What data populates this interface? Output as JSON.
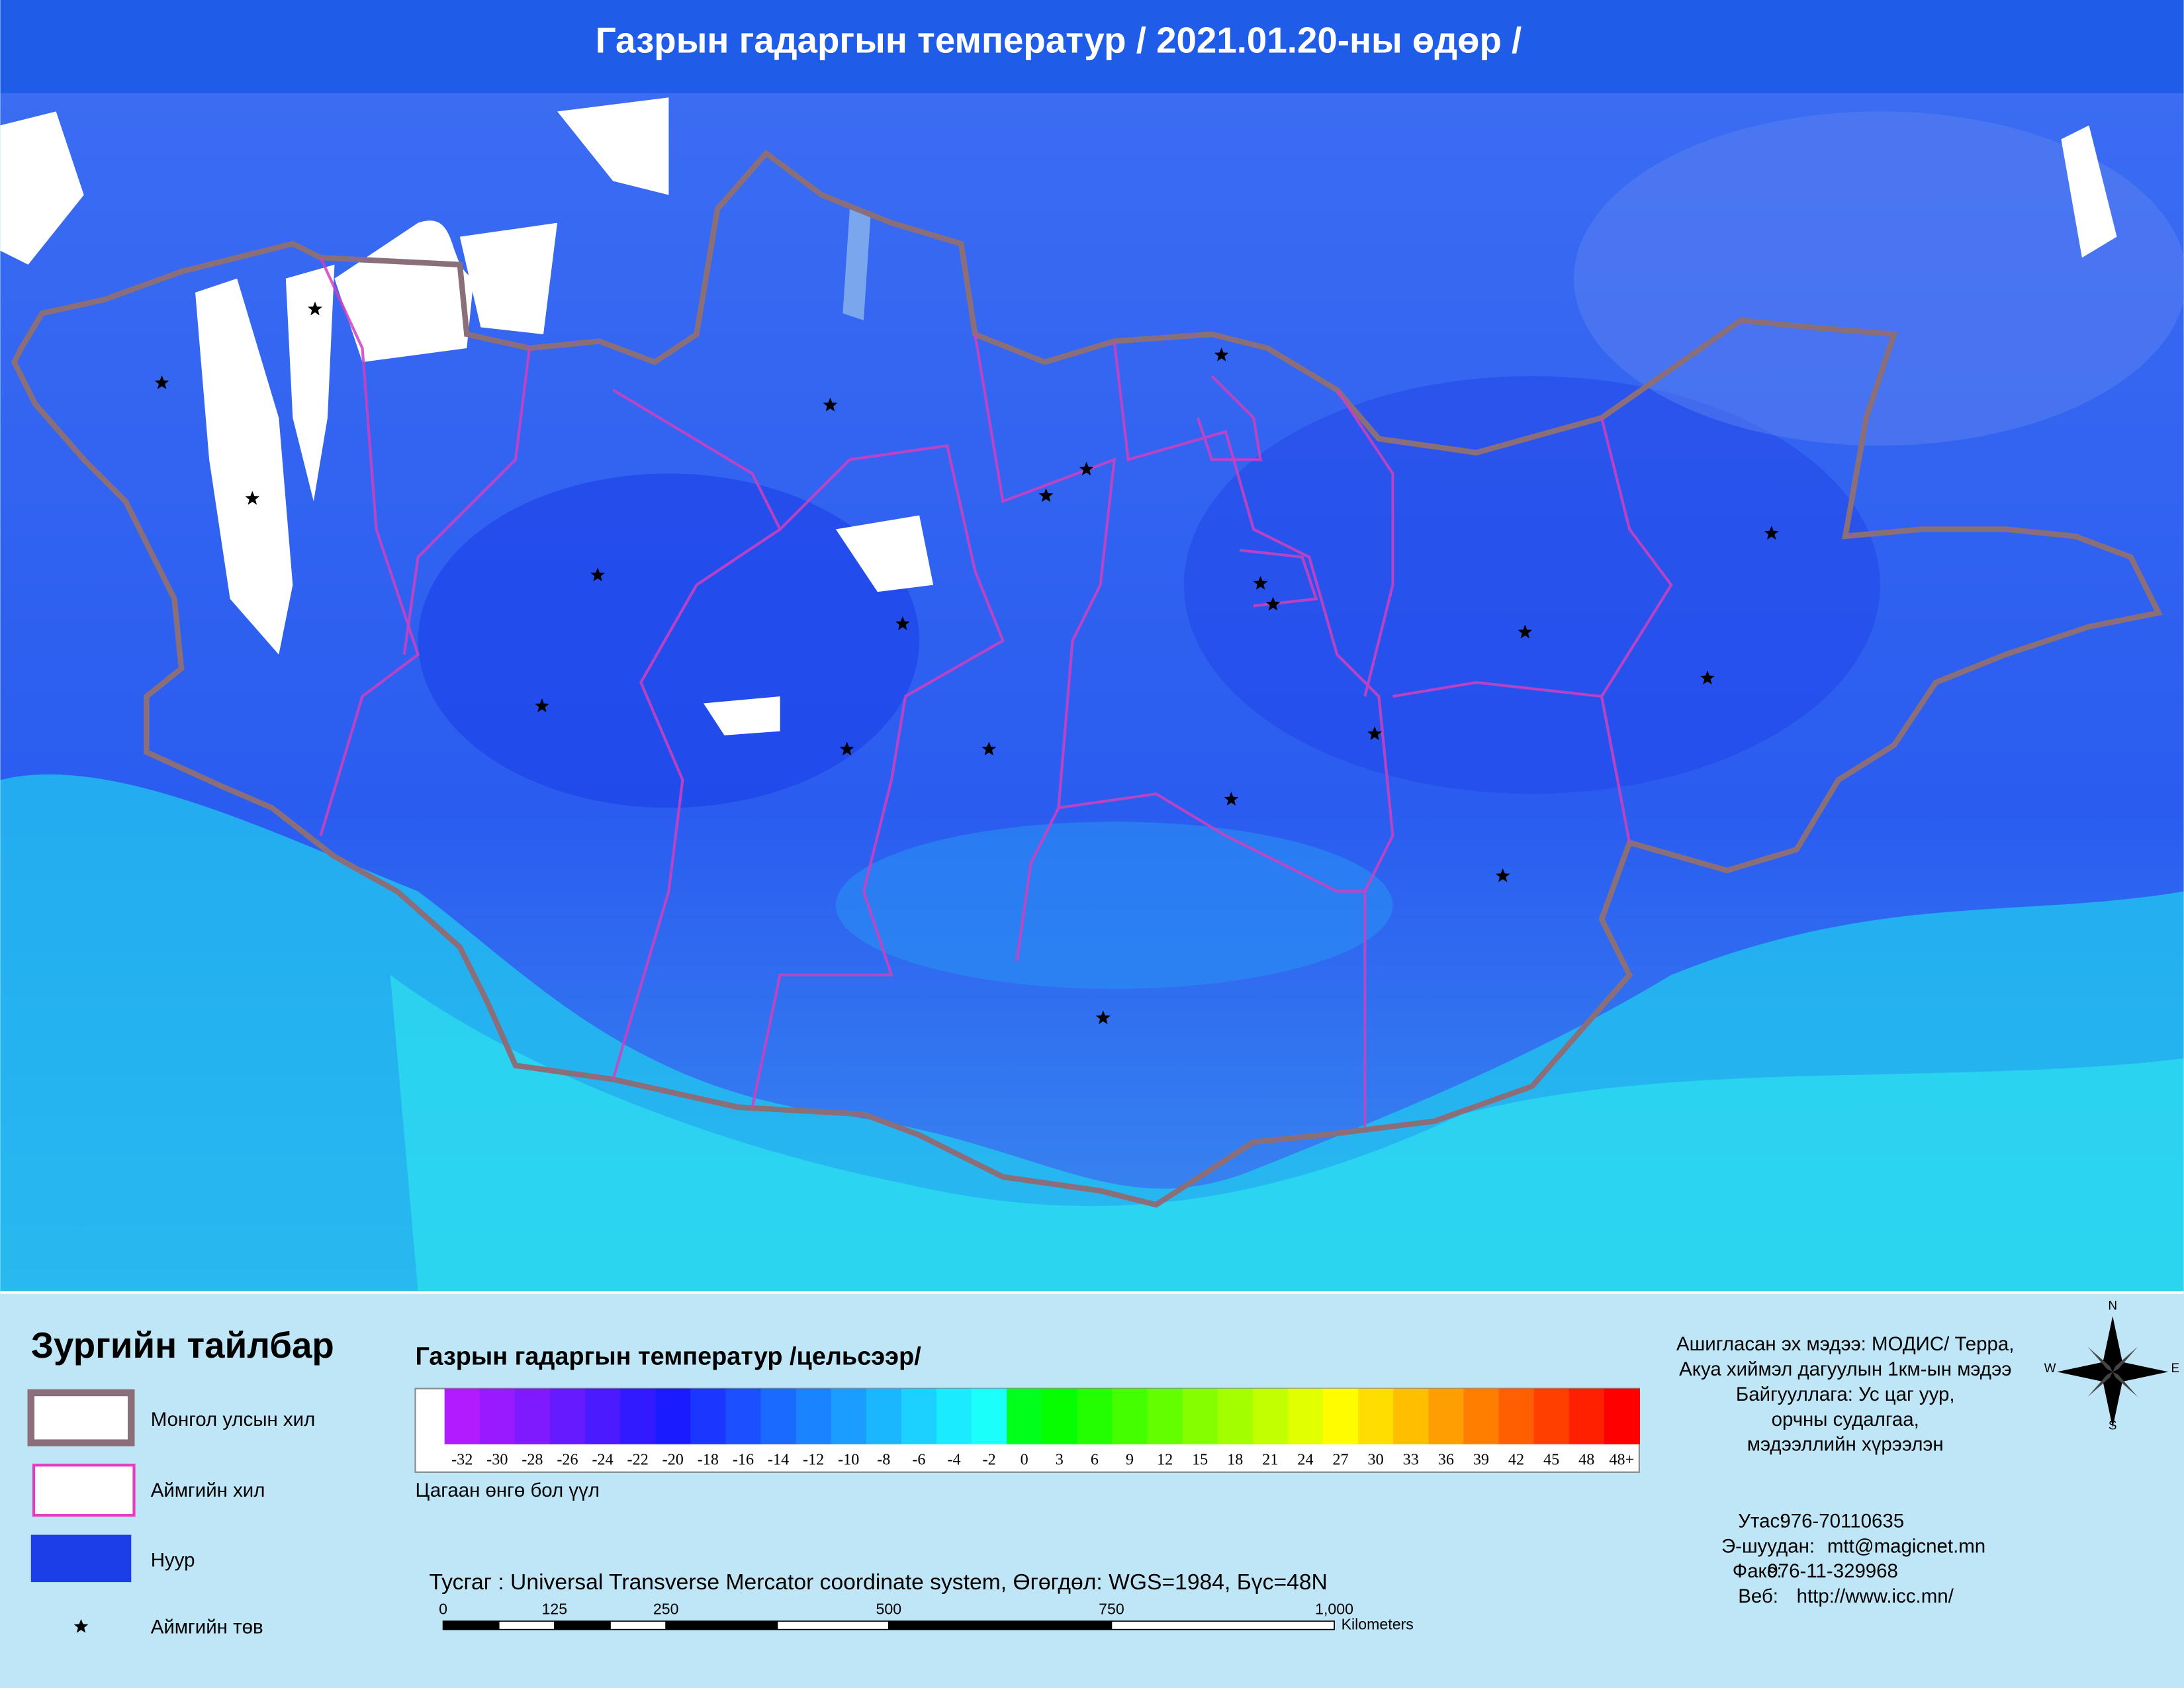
{
  "header": {
    "title": "Газрын гадаргын температур / 2021.01.20-ны өдөр /"
  },
  "legend": {
    "title": "Зургийн тайлбар",
    "items": [
      "Монгол улсын хил",
      "Аймгийн хил",
      "Нуур",
      "Аймгийн төв"
    ]
  },
  "color_scale": {
    "title": "Газрын гадаргын температур /цельсээр/",
    "labels": [
      "-32",
      "-30",
      "-28",
      "-26",
      "-24",
      "-22",
      "-20",
      "-18",
      "-16",
      "-14",
      "-12",
      "-10",
      "-8",
      "-6",
      "-4",
      "-2",
      "0",
      "3",
      "6",
      "9",
      "12",
      "15",
      "18",
      "21",
      "24",
      "27",
      "30",
      "33",
      "36",
      "39",
      "42",
      "45",
      "48",
      "48+"
    ],
    "note": "Цагаан өнгө бол үүл"
  },
  "projection": "Тусгаг : Universal Transverse Mercator coordinate system, Өгөгдөл: WGS=1984, Бүс=48N",
  "scale_bar": {
    "labels": [
      "0",
      "125",
      "250",
      "500",
      "750",
      "1,000"
    ],
    "unit": "Kilometers"
  },
  "source": [
    "Ашигласан эх мэдээ: МОДИС/ Терра,",
    "Акуа хиймэл дагуулын 1км-ын мэдээ",
    "Байгууллага: Ус цаг уур,",
    "орчны судалгаа,",
    "мэдээллийн хүрээлэн"
  ],
  "contacts": [
    {
      "label": "Утас:",
      "value": "976-70110635"
    },
    {
      "label": "Э-шуудан:",
      "value": "mtt@magicnet.mn"
    },
    {
      "label": "Факс:",
      "value": "976-11-329968"
    },
    {
      "label": "Веб:",
      "value": "http://www.icc.mn/"
    }
  ],
  "compass": {
    "n": "N",
    "s": "S",
    "e": "E",
    "w": "W"
  }
}
